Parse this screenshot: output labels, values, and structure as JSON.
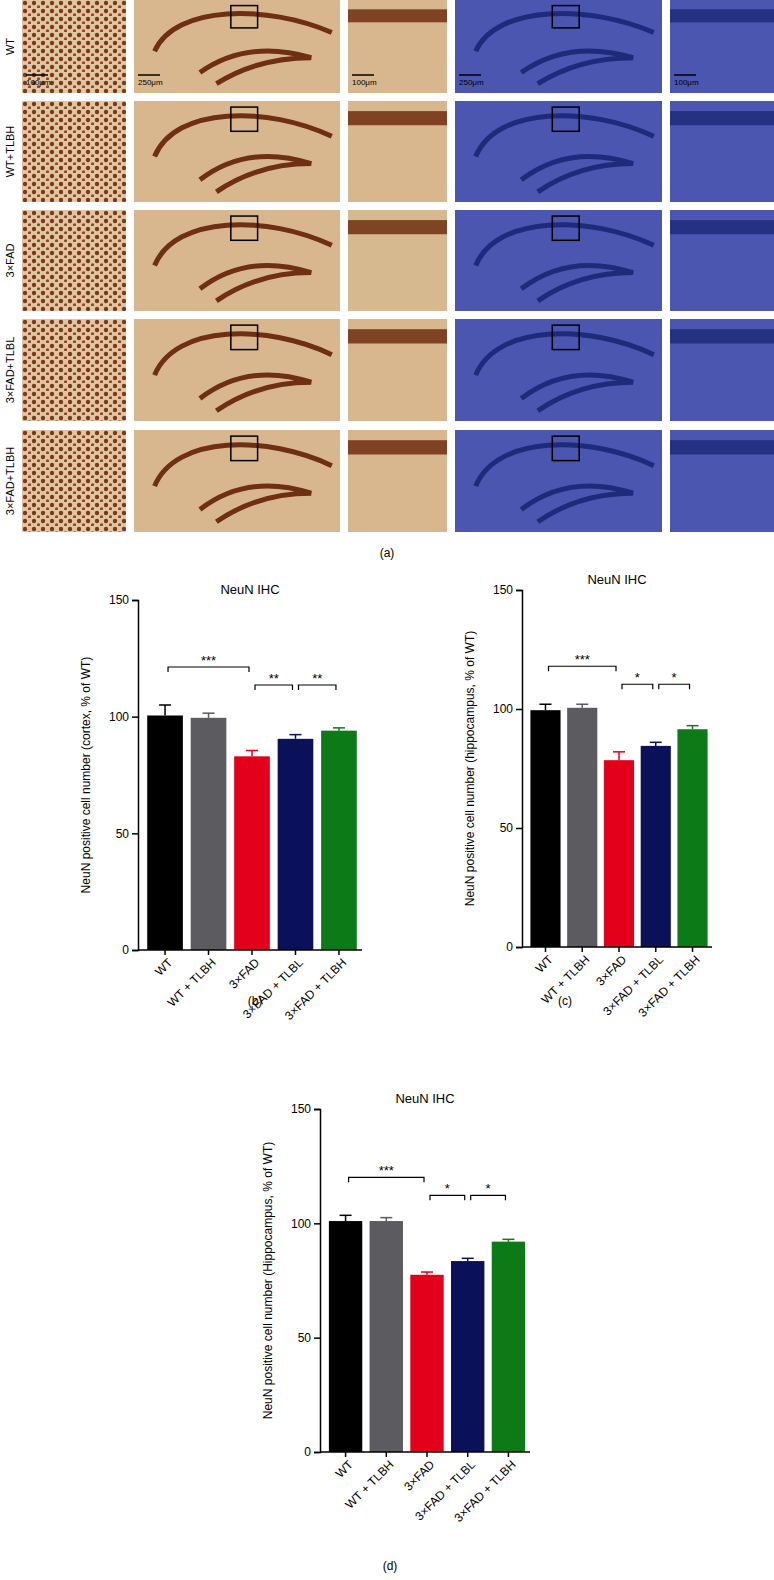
{
  "image_panel": {
    "caption": "(a)",
    "row_labels": [
      "WT",
      "WT+TLBH",
      "3×FAD",
      "3×FAD+TLBL",
      "3×FAD+TLBH"
    ],
    "scale_bars": [
      "100μm",
      "250μm",
      "100μm",
      "250μm",
      "100μm"
    ]
  },
  "chart_data": [
    {
      "type": "bar",
      "title": "NeuN IHC",
      "caption": "(b)",
      "y_label": "NeuN positive cell number (cortex, % of WT)",
      "categories": [
        "WT",
        "WT + TLBH",
        "3×FAD",
        "3×FAD + TLBL",
        "3×FAD + TLBH"
      ],
      "values": [
        100.5,
        99.5,
        83,
        90.5,
        94
      ],
      "errors": [
        4.5,
        2,
        2.5,
        1.8,
        1.2
      ],
      "colors": [
        "#000000",
        "#5b5b60",
        "#e3001b",
        "#0b1158",
        "#0c7a17"
      ],
      "ylim": [
        0,
        150
      ],
      "yticks": [
        0,
        50,
        100,
        150
      ],
      "annotations": [
        {
          "text": "***",
          "between": [
            "WT",
            "3×FAD"
          ]
        },
        {
          "text": "**",
          "between": [
            "3×FAD",
            "3×FAD + TLBL"
          ]
        },
        {
          "text": "**",
          "between": [
            "3×FAD + TLBL",
            "3×FAD + TLBH"
          ]
        }
      ]
    },
    {
      "type": "bar",
      "title": "NeuN IHC",
      "caption": "(c)",
      "y_label": "NeuN positive cell number (hippocampus, % of WT)",
      "categories": [
        "WT",
        "WT + TLBH",
        "3×FAD",
        "3×FAD + TLBL",
        "3×FAD + TLBH"
      ],
      "values": [
        99.5,
        100.5,
        78.5,
        84.5,
        91.5
      ],
      "errors": [
        2.5,
        1.5,
        3.5,
        1.5,
        1.5
      ],
      "colors": [
        "#000000",
        "#5b5b60",
        "#e3001b",
        "#0b1158",
        "#0c7a17"
      ],
      "ylim": [
        0,
        150
      ],
      "yticks": [
        0,
        50,
        100,
        150
      ],
      "annotations": [
        {
          "text": "***",
          "between": [
            "WT",
            "3×FAD"
          ]
        },
        {
          "text": "*",
          "between": [
            "3×FAD",
            "3×FAD + TLBL"
          ]
        },
        {
          "text": "*",
          "between": [
            "3×FAD + TLBL",
            "3×FAD + TLBH"
          ]
        }
      ]
    },
    {
      "type": "bar",
      "title": "NeuN IHC",
      "caption": "(d)",
      "y_label": "NeuN positive cell number (Hippocampus, % of WT)",
      "categories": [
        "WT",
        "WT + TLBH",
        "3×FAD",
        "3×FAD + TLBL",
        "3×FAD + TLBH"
      ],
      "values": [
        101,
        101,
        77.5,
        83.5,
        92
      ],
      "errors": [
        2.5,
        1.5,
        1.2,
        1.2,
        1
      ],
      "colors": [
        "#000000",
        "#5b5b60",
        "#e3001b",
        "#0b1158",
        "#0c7a17"
      ],
      "ylim": [
        0,
        150
      ],
      "yticks": [
        0,
        50,
        100,
        150
      ],
      "annotations": [
        {
          "text": "***",
          "between": [
            "WT",
            "3×FAD"
          ]
        },
        {
          "text": "*",
          "between": [
            "3×FAD",
            "3×FAD + TLBL"
          ]
        },
        {
          "text": "*",
          "between": [
            "3×FAD + TLBL",
            "3×FAD + TLBH"
          ]
        }
      ]
    }
  ]
}
